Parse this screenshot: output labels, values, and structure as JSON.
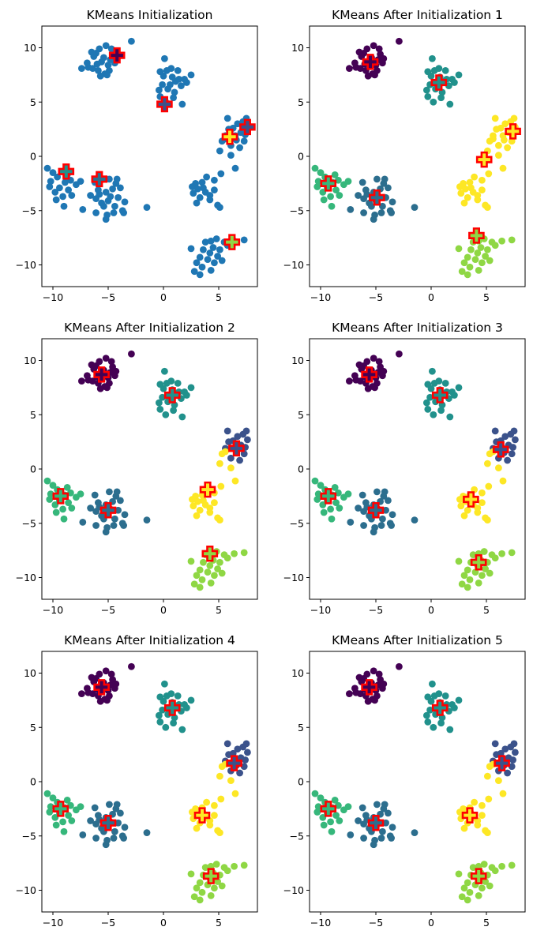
{
  "figure": {
    "background": "#ffffff",
    "axis_color": "#000000"
  },
  "style": {
    "initial_point_color": "#1f77b4",
    "centroid_edge_color": "#ff0000",
    "centroid_marker": "plus-filled",
    "cluster_colors": [
      "#440154",
      "#3b528b",
      "#2c6e8e",
      "#21918c",
      "#36b77b",
      "#8fd744",
      "#fde725"
    ]
  },
  "chart_data": [
    {
      "type": "scatter",
      "title": "KMeans Initialization",
      "xlim": [
        -11,
        8.5
      ],
      "ylim": [
        -12,
        12
      ],
      "x_ticks": [
        "-10",
        "-5",
        "0",
        "5"
      ],
      "y_ticks": [
        "-10",
        "-5",
        "0",
        "5",
        "10"
      ],
      "grid": false,
      "colored_by_cluster": false,
      "centroids": [
        {
          "x": -4.2,
          "y": 9.3,
          "fill": "#440154"
        },
        {
          "x": 0.1,
          "y": 4.8,
          "fill": "#3b528b"
        },
        {
          "x": 6.0,
          "y": 1.8,
          "fill": "#fde725"
        },
        {
          "x": 7.6,
          "y": 2.7,
          "fill": "#3b528b"
        },
        {
          "x": -8.8,
          "y": -1.4,
          "fill": "#21918c"
        },
        {
          "x": -5.8,
          "y": -2.1,
          "fill": "#2c6e8e"
        },
        {
          "x": 6.2,
          "y": -7.9,
          "fill": "#8fd744"
        }
      ]
    },
    {
      "type": "scatter",
      "title": "KMeans After Initialization 1",
      "xlim": [
        -11,
        8.5
      ],
      "ylim": [
        -12,
        12
      ],
      "x_ticks": [
        "-10",
        "-5",
        "0",
        "5"
      ],
      "y_ticks": [
        "-10",
        "-5",
        "0",
        "5",
        "10"
      ],
      "grid": false,
      "colored_by_cluster": true,
      "assignment": {
        "A": 0,
        "B": 3,
        "C": 6,
        "D": 6,
        "E": 4,
        "F": 2,
        "G": 5
      },
      "centroids": [
        {
          "x": -5.5,
          "y": 8.7,
          "fill": "#440154"
        },
        {
          "x": 0.7,
          "y": 6.8,
          "fill": "#21918c"
        },
        {
          "x": 7.4,
          "y": 2.3,
          "fill": "#fde725"
        },
        {
          "x": 4.8,
          "y": -0.3,
          "fill": "#fde725"
        },
        {
          "x": -9.3,
          "y": -2.5,
          "fill": "#36b77b"
        },
        {
          "x": -4.9,
          "y": -3.8,
          "fill": "#2c6e8e"
        },
        {
          "x": 4.1,
          "y": -7.3,
          "fill": "#8fd744"
        }
      ]
    },
    {
      "type": "scatter",
      "title": "KMeans After Initialization 2",
      "xlim": [
        -11,
        8.5
      ],
      "ylim": [
        -12,
        12
      ],
      "x_ticks": [
        "-10",
        "-5",
        "0",
        "5"
      ],
      "y_ticks": [
        "-10",
        "-5",
        "0",
        "5",
        "10"
      ],
      "grid": false,
      "colored_by_cluster": true,
      "assignment": {
        "A": 0,
        "B": 3,
        "C": 1,
        "D": 6,
        "E": 4,
        "F": 2,
        "G": 5
      },
      "centroids": [
        {
          "x": -5.6,
          "y": 8.7,
          "fill": "#440154"
        },
        {
          "x": 0.8,
          "y": 6.8,
          "fill": "#21918c"
        },
        {
          "x": 6.6,
          "y": 1.9,
          "fill": "#3b528b"
        },
        {
          "x": 4.0,
          "y": -1.9,
          "fill": "#fde725"
        },
        {
          "x": -9.3,
          "y": -2.5,
          "fill": "#36b77b"
        },
        {
          "x": -5.0,
          "y": -3.8,
          "fill": "#2c6e8e"
        },
        {
          "x": 4.2,
          "y": -7.8,
          "fill": "#8fd744"
        }
      ]
    },
    {
      "type": "scatter",
      "title": "KMeans After Initialization 3",
      "xlim": [
        -11,
        8.5
      ],
      "ylim": [
        -12,
        12
      ],
      "x_ticks": [
        "-10",
        "-5",
        "0",
        "5"
      ],
      "y_ticks": [
        "-10",
        "-5",
        "0",
        "5",
        "10"
      ],
      "grid": false,
      "colored_by_cluster": true,
      "assignment": {
        "A": 0,
        "B": 3,
        "C": 1,
        "D": 6,
        "E": 4,
        "F": 2,
        "G": 5
      },
      "centroids": [
        {
          "x": -5.6,
          "y": 8.7,
          "fill": "#440154"
        },
        {
          "x": 0.8,
          "y": 6.8,
          "fill": "#21918c"
        },
        {
          "x": 6.3,
          "y": 1.8,
          "fill": "#3b528b"
        },
        {
          "x": 3.6,
          "y": -2.8,
          "fill": "#fde725"
        },
        {
          "x": -9.3,
          "y": -2.5,
          "fill": "#36b77b"
        },
        {
          "x": -5.0,
          "y": -3.8,
          "fill": "#2c6e8e"
        },
        {
          "x": 4.3,
          "y": -8.6,
          "fill": "#8fd744"
        }
      ]
    },
    {
      "type": "scatter",
      "title": "KMeans After Initialization 4",
      "xlim": [
        -11,
        8.5
      ],
      "ylim": [
        -12,
        12
      ],
      "x_ticks": [
        "-10",
        "-5",
        "0",
        "5"
      ],
      "y_ticks": [
        "-10",
        "-5",
        "0",
        "5",
        "10"
      ],
      "grid": false,
      "colored_by_cluster": true,
      "assignment": {
        "A": 0,
        "B": 3,
        "C": 1,
        "D": 6,
        "E": 4,
        "F": 2,
        "G": 5
      },
      "centroids": [
        {
          "x": -5.6,
          "y": 8.7,
          "fill": "#440154"
        },
        {
          "x": 0.8,
          "y": 6.8,
          "fill": "#21918c"
        },
        {
          "x": 6.4,
          "y": 1.7,
          "fill": "#3b528b"
        },
        {
          "x": 3.5,
          "y": -3.1,
          "fill": "#fde725"
        },
        {
          "x": -9.3,
          "y": -2.5,
          "fill": "#36b77b"
        },
        {
          "x": -5.0,
          "y": -3.8,
          "fill": "#2c6e8e"
        },
        {
          "x": 4.3,
          "y": -8.7,
          "fill": "#8fd744"
        }
      ]
    },
    {
      "type": "scatter",
      "title": "KMeans After Initialization 5",
      "xlim": [
        -11,
        8.5
      ],
      "ylim": [
        -12,
        12
      ],
      "x_ticks": [
        "-10",
        "-5",
        "0",
        "5"
      ],
      "y_ticks": [
        "-10",
        "-5",
        "0",
        "5",
        "10"
      ],
      "grid": false,
      "colored_by_cluster": true,
      "assignment": {
        "A": 0,
        "B": 3,
        "C": 1,
        "D": 6,
        "E": 4,
        "F": 2,
        "G": 5
      },
      "centroids": [
        {
          "x": -5.6,
          "y": 8.7,
          "fill": "#440154"
        },
        {
          "x": 0.8,
          "y": 6.8,
          "fill": "#21918c"
        },
        {
          "x": 6.4,
          "y": 1.7,
          "fill": "#3b528b"
        },
        {
          "x": 3.5,
          "y": -3.1,
          "fill": "#fde725"
        },
        {
          "x": -9.3,
          "y": -2.5,
          "fill": "#36b77b"
        },
        {
          "x": -5.0,
          "y": -3.8,
          "fill": "#2c6e8e"
        },
        {
          "x": 4.3,
          "y": -8.7,
          "fill": "#8fd744"
        }
      ]
    }
  ],
  "points": {
    "A": [
      [
        -5.6,
        8.7
      ],
      [
        -6.1,
        9.5
      ],
      [
        -5.2,
        10.2
      ],
      [
        -4.8,
        8.9
      ],
      [
        -6.4,
        8.1
      ],
      [
        -5.9,
        7.9
      ],
      [
        -5.3,
        7.6
      ],
      [
        -4.6,
        9.4
      ],
      [
        -6.3,
        9.2
      ],
      [
        -5.0,
        8.4
      ],
      [
        -5.8,
        9.9
      ],
      [
        -4.9,
        7.9
      ],
      [
        -6.8,
        8.2
      ],
      [
        -5.4,
        9.1
      ],
      [
        -6.0,
        8.5
      ],
      [
        -5.1,
        7.5
      ],
      [
        -4.4,
        8.6
      ],
      [
        -6.5,
        9.6
      ],
      [
        -5.7,
        7.4
      ],
      [
        -4.7,
        9.9
      ],
      [
        -7.4,
        8.1
      ],
      [
        -6.9,
        8.6
      ],
      [
        -4.3,
        9.0
      ],
      [
        -2.9,
        10.6
      ]
    ],
    "B": [
      [
        0.3,
        7.9
      ],
      [
        0.8,
        7.3
      ],
      [
        1.3,
        7.9
      ],
      [
        0.0,
        7.4
      ],
      [
        0.6,
        6.6
      ],
      [
        1.1,
        6.9
      ],
      [
        -0.1,
        6.6
      ],
      [
        0.4,
        6.2
      ],
      [
        1.6,
        6.5
      ],
      [
        0.7,
        8.1
      ],
      [
        1.9,
        7.1
      ],
      [
        2.1,
        6.8
      ],
      [
        1.4,
        7.1
      ],
      [
        2.5,
        7.5
      ],
      [
        1.0,
        5.9
      ],
      [
        -0.4,
        6.1
      ],
      [
        -0.3,
        5.5
      ],
      [
        0.2,
        5.0
      ],
      [
        0.9,
        5.4
      ],
      [
        1.7,
        4.8
      ],
      [
        0.1,
        9.0
      ],
      [
        -0.3,
        7.8
      ]
    ],
    "C": [
      [
        5.8,
        3.5
      ],
      [
        6.3,
        2.6
      ],
      [
        6.7,
        3.0
      ],
      [
        7.2,
        3.2
      ],
      [
        7.5,
        3.5
      ],
      [
        6.5,
        1.9
      ],
      [
        7.0,
        2.2
      ],
      [
        7.6,
        2.7
      ],
      [
        5.9,
        2.5
      ],
      [
        6.6,
        1.5
      ],
      [
        7.3,
        1.4
      ],
      [
        6.1,
        1.0
      ],
      [
        6.9,
        0.8
      ],
      [
        5.6,
        1.9
      ],
      [
        7.4,
        2.0
      ]
    ],
    "D": [
      [
        5.6,
        1.6
      ],
      [
        5.3,
        1.4
      ],
      [
        5.1,
        0.5
      ],
      [
        6.1,
        0.1
      ],
      [
        6.5,
        -1.1
      ],
      [
        5.2,
        -1.6
      ],
      [
        3.9,
        -1.9
      ],
      [
        4.6,
        -2.2
      ],
      [
        3.5,
        -2.4
      ],
      [
        2.9,
        -2.5
      ],
      [
        2.6,
        -2.8
      ],
      [
        3.1,
        -3.0
      ],
      [
        3.8,
        -3.3
      ],
      [
        2.7,
        -3.4
      ],
      [
        4.2,
        -3.6
      ],
      [
        3.3,
        -3.8
      ],
      [
        4.6,
        -3.1
      ],
      [
        3.0,
        -4.3
      ],
      [
        4.2,
        -4.0
      ],
      [
        4.9,
        -4.5
      ],
      [
        3.6,
        -2.9
      ],
      [
        5.1,
        -4.7
      ]
    ],
    "E": [
      [
        -9.6,
        -1.9
      ],
      [
        -10.2,
        -2.3
      ],
      [
        -8.9,
        -2.4
      ],
      [
        -9.4,
        -2.9
      ],
      [
        -9.8,
        -3.3
      ],
      [
        -8.6,
        -3.1
      ],
      [
        -10.5,
        -1.1
      ],
      [
        -10.0,
        -1.5
      ],
      [
        -8.4,
        -2.2
      ],
      [
        -7.9,
        -2.6
      ],
      [
        -9.1,
        -3.7
      ],
      [
        -8.3,
        -3.6
      ],
      [
        -9.7,
        -4.0
      ],
      [
        -9.0,
        -4.6
      ],
      [
        -7.5,
        -2.3
      ],
      [
        -8.7,
        -1.7
      ],
      [
        -10.3,
        -2.8
      ]
    ],
    "F": [
      [
        -5.2,
        -3.3
      ],
      [
        -4.6,
        -3.0
      ],
      [
        -5.8,
        -3.5
      ],
      [
        -4.3,
        -2.5
      ],
      [
        -5.0,
        -4.1
      ],
      [
        -5.6,
        -4.3
      ],
      [
        -4.8,
        -3.7
      ],
      [
        -4.1,
        -3.8
      ],
      [
        -6.2,
        -2.4
      ],
      [
        -5.9,
        -3.1
      ],
      [
        -6.1,
        -3.9
      ],
      [
        -4.4,
        -4.6
      ],
      [
        -5.4,
        -4.6
      ],
      [
        -6.1,
        -5.2
      ],
      [
        -5.1,
        -5.4
      ],
      [
        -5.2,
        -5.8
      ],
      [
        -4.5,
        -5.2
      ],
      [
        -3.5,
        -4.2
      ],
      [
        -3.6,
        -5.2
      ],
      [
        -3.7,
        -5.0
      ],
      [
        -3.9,
        -2.9
      ],
      [
        -7.3,
        -4.9
      ],
      [
        -1.5,
        -4.7
      ],
      [
        -4.9,
        -2.1
      ],
      [
        -6.6,
        -3.6
      ],
      [
        -4.2,
        -2.1
      ]
    ],
    "G": [
      [
        4.3,
        -7.8
      ],
      [
        4.8,
        -7.6
      ],
      [
        5.5,
        -7.9
      ],
      [
        3.8,
        -7.9
      ],
      [
        4.5,
        -8.4
      ],
      [
        5.1,
        -8.6
      ],
      [
        3.6,
        -8.6
      ],
      [
        4.2,
        -8.9
      ],
      [
        4.9,
        -9.2
      ],
      [
        3.3,
        -9.3
      ],
      [
        4.0,
        -9.5
      ],
      [
        4.6,
        -9.8
      ],
      [
        3.0,
        -9.8
      ],
      [
        3.5,
        -10.2
      ],
      [
        4.3,
        -10.5
      ],
      [
        3.3,
        -10.9
      ],
      [
        2.5,
        -8.5
      ],
      [
        5.8,
        -8.2
      ],
      [
        6.4,
        -7.8
      ],
      [
        7.3,
        -7.7
      ],
      [
        2.8,
        -10.6
      ],
      [
        5.3,
        -9.6
      ]
    ]
  }
}
